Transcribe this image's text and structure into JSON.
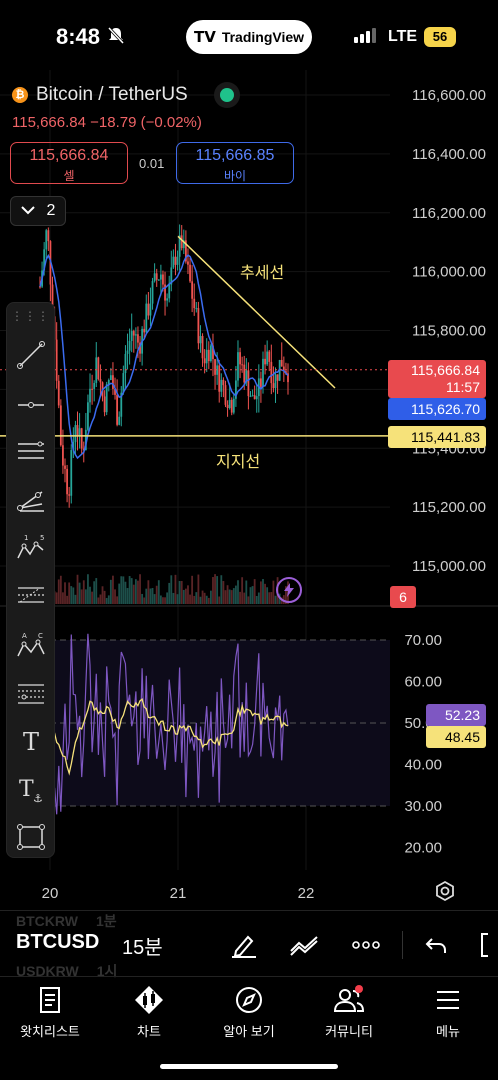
{
  "status_bar": {
    "time": "8:48",
    "carrier_pill": "TradingView",
    "network": "LTE",
    "battery": "56"
  },
  "header": {
    "pair": "Bitcoin / TetherUS",
    "last_price": "115,666.84",
    "change": "−18.79",
    "change_pct": "(−0.02%)",
    "sell_value": "115,666.84",
    "sell_label": "셀",
    "spread": "0.01",
    "buy_value": "115,666.85",
    "buy_label": "바이",
    "collapse_count": "2"
  },
  "price_axis": {
    "ticks": [
      "116,600.00",
      "116,400.00",
      "116,200.00",
      "116,000.00",
      "115,800.00",
      "115,600.00",
      "115,400.00",
      "115,200.00",
      "115,000.00"
    ],
    "last_price_label": "115,666.84",
    "countdown": "11:57",
    "ma_label": "115,626.70",
    "support_label": "115,441.83",
    "volume_label": "6"
  },
  "rsi_axis": {
    "ticks": [
      "70.00",
      "60.00",
      "50.00",
      "40.00",
      "30.00",
      "20.00"
    ],
    "rsi_value": "52.23",
    "rsi_ma_value": "48.45"
  },
  "time_axis": {
    "ticks": [
      "20",
      "21",
      "22"
    ]
  },
  "annotations": {
    "trendline_label": "추세선",
    "support_label": "지지선"
  },
  "chart_data": {
    "type": "candlestick",
    "symbol": "BTCUSD",
    "ylim": [
      114900,
      116700
    ],
    "rsi_ylim": [
      15,
      75
    ],
    "x_days": [
      "20",
      "21",
      "22"
    ],
    "close_path": [
      115950,
      116150,
      115800,
      115400,
      115250,
      115500,
      115380,
      115600,
      115700,
      115550,
      115650,
      115500,
      115700,
      115800,
      115750,
      115850,
      115950,
      116000,
      115900,
      116050,
      116100,
      115980,
      115850,
      115700,
      115750,
      115650,
      115600,
      115550,
      115700,
      115650,
      115560,
      115600,
      115750,
      115620,
      115700,
      115667
    ],
    "trendline": {
      "from": [
        21.0,
        116120
      ],
      "to": [
        21.9,
        115700
      ]
    },
    "support_level": 115441.83,
    "rsi_levels": [
      70,
      50,
      30
    ],
    "last_rsi": 52.23,
    "last_rsi_ma": 48.45
  },
  "toolbar_tools": [
    "trend-line",
    "horizontal-line",
    "parallel-channel",
    "pitchfork",
    "elliott-wave",
    "fib-retracement",
    "xabcd-pattern",
    "fib-extension",
    "text",
    "anchored-text",
    "rectangle"
  ],
  "bottom_bar": {
    "symbol": "BTCUSD",
    "timeframe": "15분",
    "ghost_1_sym": "BTCKRW",
    "ghost_1_tf": "1분",
    "ghost_2_sym": "USDKRW",
    "ghost_2_tf": "1시"
  },
  "tabs": [
    {
      "label": "왓치리스트",
      "icon": "watchlist-icon"
    },
    {
      "label": "차트",
      "icon": "chart-icon"
    },
    {
      "label": "알아 보기",
      "icon": "explore-icon"
    },
    {
      "label": "커뮤니티",
      "icon": "community-icon"
    },
    {
      "label": "메뉴",
      "icon": "menu-icon"
    }
  ],
  "colors": {
    "up": "#26a69a",
    "down": "#ef5350",
    "ma": "#3b6cf0",
    "trend": "#f6e27a",
    "rsi": "#7e57c2",
    "rsi_ma": "#f6e27a",
    "support": "#f6e27a"
  }
}
